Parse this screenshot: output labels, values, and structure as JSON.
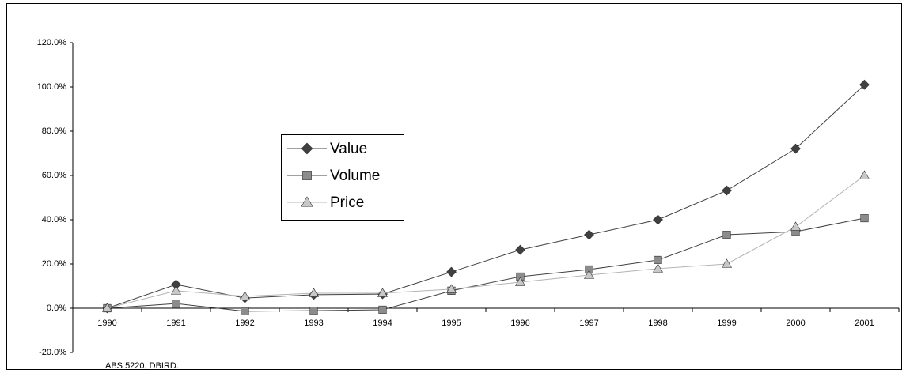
{
  "chart_data": {
    "type": "line",
    "categories": [
      "1990",
      "1991",
      "1992",
      "1993",
      "1994",
      "1995",
      "1996",
      "1997",
      "1998",
      "1999",
      "2000",
      "2001"
    ],
    "series": [
      {
        "name": "Value",
        "color": "#404040",
        "line_color": "#404040",
        "marker": "diamond",
        "values": [
          0,
          10.7,
          4.6,
          6.1,
          6.4,
          16.4,
          26.4,
          33.2,
          40,
          53.2,
          72.1,
          101
        ]
      },
      {
        "name": "Volume",
        "color": "#8c8c8c",
        "line_color": "#404040",
        "marker": "square",
        "values": [
          0,
          2.1,
          -1.4,
          -1.1,
          -0.7,
          7.9,
          14.3,
          17.5,
          21.8,
          33.2,
          34.6,
          40.7
        ]
      },
      {
        "name": "Price",
        "color": "#c8c8c8",
        "line_color": "#b4b4b4",
        "marker": "triangle",
        "values": [
          0,
          7.9,
          5.4,
          6.8,
          6.8,
          8.6,
          11.8,
          15,
          17.9,
          20,
          36.8,
          60
        ]
      }
    ],
    "ylim": [
      -20,
      120
    ],
    "yticks": [
      {
        "value": -20,
        "label": "-20.0%"
      },
      {
        "value": 0,
        "label": "0.0%"
      },
      {
        "value": 20,
        "label": "20.0%"
      },
      {
        "value": 40,
        "label": "40.0%"
      },
      {
        "value": 60,
        "label": "60.0%"
      },
      {
        "value": 80,
        "label": "80.0%"
      },
      {
        "value": 100,
        "label": "100.0%"
      },
      {
        "value": 120,
        "label": "120.0%"
      }
    ],
    "legend": "center-left",
    "source": "ABS 5220, DBIRD."
  }
}
